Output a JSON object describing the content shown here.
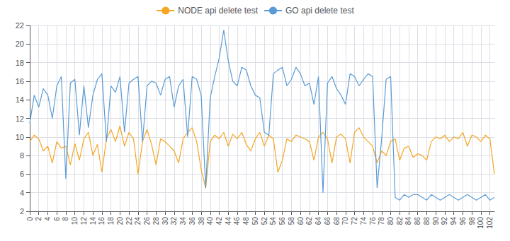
{
  "chart_data": {
    "type": "line",
    "x": [
      0,
      1,
      2,
      3,
      4,
      5,
      6,
      7,
      8,
      9,
      10,
      11,
      12,
      13,
      14,
      15,
      16,
      17,
      18,
      19,
      20,
      21,
      22,
      23,
      24,
      25,
      26,
      27,
      28,
      29,
      30,
      31,
      32,
      33,
      34,
      35,
      36,
      37,
      38,
      39,
      40,
      41,
      42,
      43,
      44,
      45,
      46,
      47,
      48,
      49,
      50,
      51,
      52,
      53,
      54,
      55,
      56,
      57,
      58,
      59,
      60,
      61,
      62,
      63,
      64,
      65,
      66,
      67,
      68,
      69,
      70,
      71,
      72,
      73,
      74,
      75,
      76,
      77,
      78,
      79,
      80,
      81,
      82,
      83,
      84,
      85,
      86,
      87,
      88,
      89,
      90,
      91,
      92,
      93,
      94,
      95,
      96,
      97,
      98,
      99,
      100,
      101,
      102,
      103
    ],
    "xlim": [
      0,
      103
    ],
    "xticks": [
      0,
      2,
      4,
      6,
      8,
      10,
      12,
      14,
      16,
      18,
      20,
      22,
      24,
      26,
      28,
      30,
      32,
      34,
      36,
      38,
      40,
      42,
      44,
      46,
      48,
      50,
      52,
      54,
      56,
      58,
      60,
      62,
      64,
      66,
      68,
      70,
      72,
      74,
      76,
      78,
      80,
      82,
      84,
      86,
      88,
      90,
      92,
      94,
      96,
      98,
      100,
      102
    ],
    "ylim": [
      2,
      22
    ],
    "yticks": [
      2,
      4,
      6,
      8,
      10,
      12,
      14,
      16,
      18,
      20,
      22
    ],
    "grid": true,
    "legend": "top",
    "series": [
      {
        "name": "NODE api delete test",
        "color": "#f5a623",
        "values": [
          9.5,
          10.2,
          9.8,
          8.5,
          9.0,
          7.2,
          9.5,
          8.8,
          9.0,
          7.0,
          9.3,
          7.5,
          9.8,
          10.5,
          8.0,
          9.2,
          6.2,
          9.8,
          10.8,
          9.5,
          11.2,
          9.0,
          10.5,
          9.8,
          6.0,
          9.5,
          10.8,
          9.2,
          7.0,
          9.8,
          9.5,
          9.0,
          8.5,
          7.2,
          9.8,
          10.5,
          11.0,
          9.5,
          6.5,
          4.5,
          9.5,
          10.2,
          9.8,
          10.5,
          9.0,
          10.3,
          9.8,
          10.5,
          9.2,
          8.5,
          9.8,
          10.5,
          9.0,
          10.2,
          9.8,
          6.2,
          7.5,
          9.8,
          9.5,
          10.2,
          10.0,
          9.8,
          9.5,
          7.5,
          10.0,
          10.5,
          9.8,
          7.2,
          10.0,
          10.3,
          9.8,
          7.2,
          10.5,
          11.0,
          10.0,
          9.5,
          9.0,
          7.2,
          8.5,
          8.0,
          9.5,
          9.8,
          7.5,
          8.8,
          9.0,
          7.8,
          8.2,
          8.0,
          7.5,
          9.5,
          10.0,
          9.8,
          10.2,
          9.5,
          10.0,
          9.8,
          10.5,
          9.0,
          10.2,
          10.0,
          9.5,
          10.2,
          9.8,
          6.0
        ]
      },
      {
        "name": "GO api delete test",
        "color": "#5b9bd5",
        "values": [
          11.5,
          14.5,
          13.2,
          15.2,
          14.5,
          12.0,
          15.5,
          16.5,
          5.5,
          15.8,
          16.2,
          10.2,
          15.5,
          11.0,
          14.5,
          16.2,
          16.8,
          9.5,
          15.5,
          14.8,
          16.5,
          10.5,
          15.8,
          16.2,
          16.5,
          9.5,
          15.5,
          16.0,
          15.8,
          14.5,
          16.2,
          16.5,
          13.2,
          15.5,
          16.2,
          10.0,
          16.5,
          16.2,
          14.5,
          4.5,
          14.2,
          16.5,
          18.5,
          21.5,
          18.2,
          16.0,
          15.5,
          17.5,
          17.2,
          15.5,
          14.5,
          14.2,
          10.5,
          10.2,
          16.8,
          17.2,
          17.5,
          15.5,
          16.2,
          17.5,
          16.8,
          15.5,
          15.8,
          13.5,
          16.5,
          4.0,
          15.8,
          16.5,
          15.2,
          14.5,
          13.5,
          16.8,
          16.5,
          15.5,
          16.2,
          16.8,
          16.5,
          4.5,
          9.8,
          16.2,
          16.5,
          3.5,
          3.2,
          3.8,
          3.5,
          3.8,
          3.8,
          3.5,
          3.2,
          3.8,
          3.5,
          3.2,
          3.5,
          3.8,
          3.5,
          3.2,
          3.5,
          3.8,
          3.5,
          3.2,
          3.5,
          3.8,
          3.2,
          3.5
        ]
      }
    ]
  }
}
